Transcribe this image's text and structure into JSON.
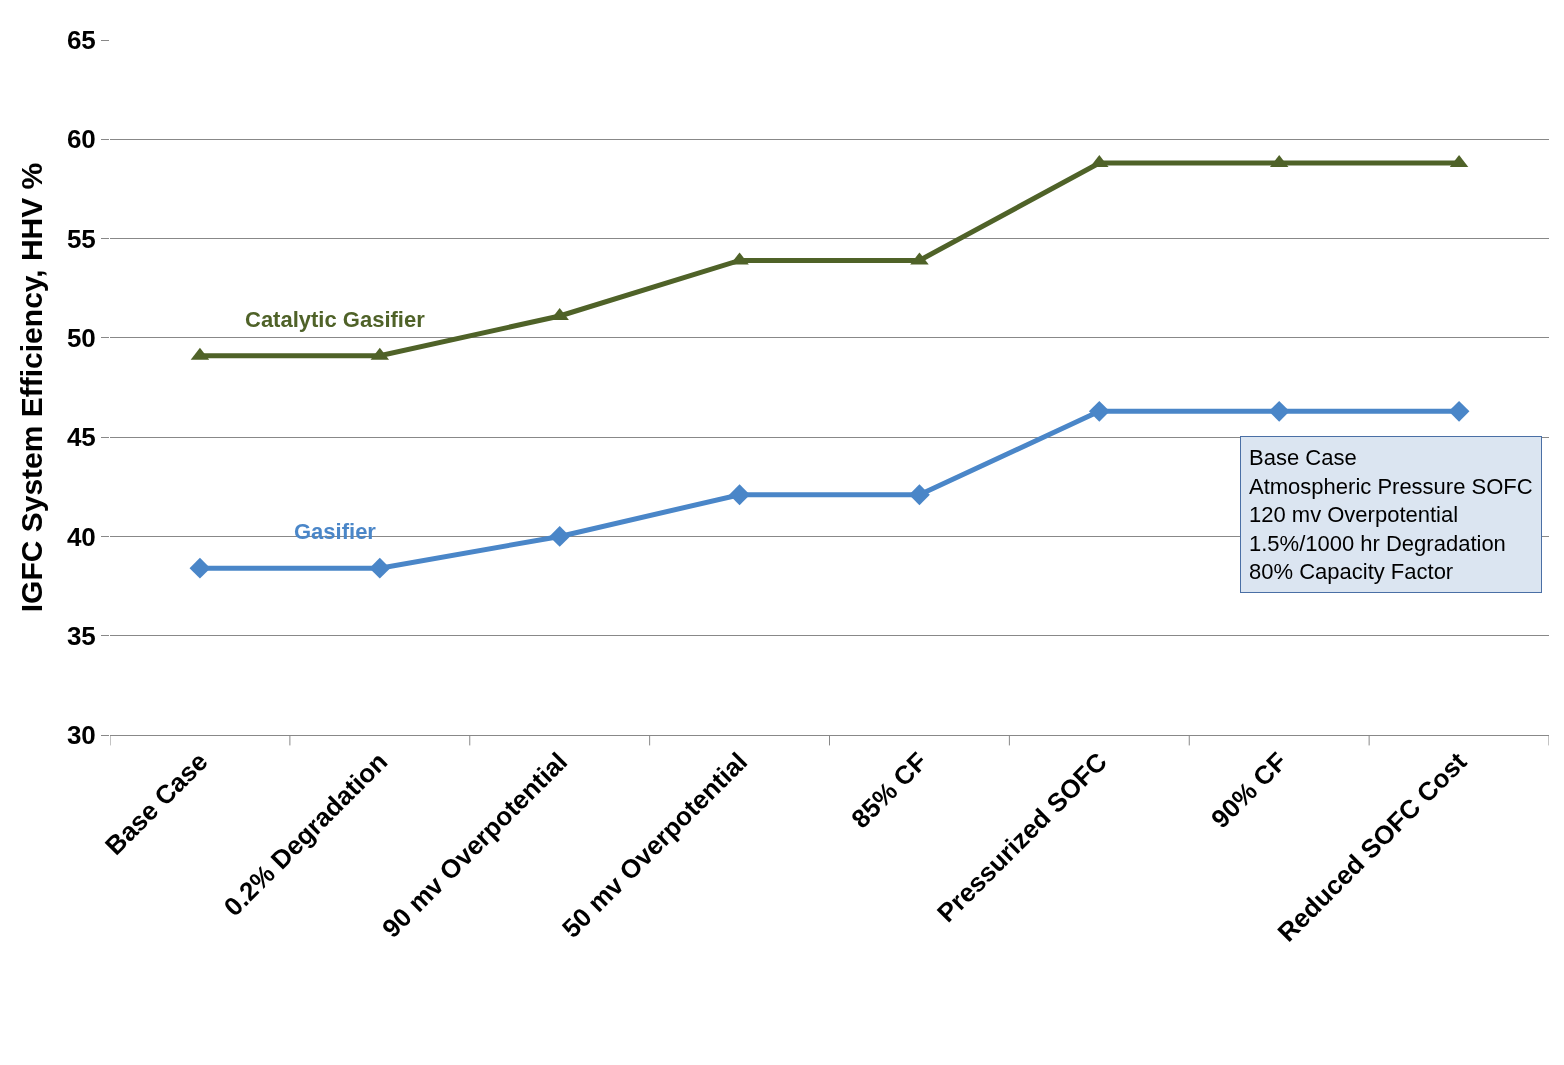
{
  "chart_data": {
    "type": "line",
    "ylabel": "IGFC System Efficiency, HHV %",
    "categories": [
      "Base Case",
      "0.2% Degradation",
      "90 mv Overpotential",
      "50 mv Overpotential",
      "85% CF",
      "Pressurized SOFC",
      "90% CF",
      "Reduced SOFC Cost"
    ],
    "series": [
      {
        "name": "Catalytic Gasifier",
        "color": "#4f6228",
        "marker": "triangle",
        "values": [
          49.1,
          49.1,
          51.1,
          53.9,
          53.9,
          58.8,
          58.8,
          58.8
        ]
      },
      {
        "name": "Gasifier",
        "color": "#4a86c8",
        "marker": "diamond",
        "values": [
          38.4,
          38.4,
          40.0,
          42.1,
          42.1,
          46.3,
          46.3,
          46.3
        ]
      }
    ],
    "ylim": [
      30,
      65
    ],
    "yticks": [
      30,
      35,
      40,
      45,
      50,
      55,
      60,
      65
    ],
    "grid": "y",
    "legend": false,
    "annotations": [
      "Base Case\nAtmospheric Pressure SOFC\n120 mv Overpotential\n1.5%/1000 hr Degradation\n80% Capacity Factor"
    ]
  }
}
